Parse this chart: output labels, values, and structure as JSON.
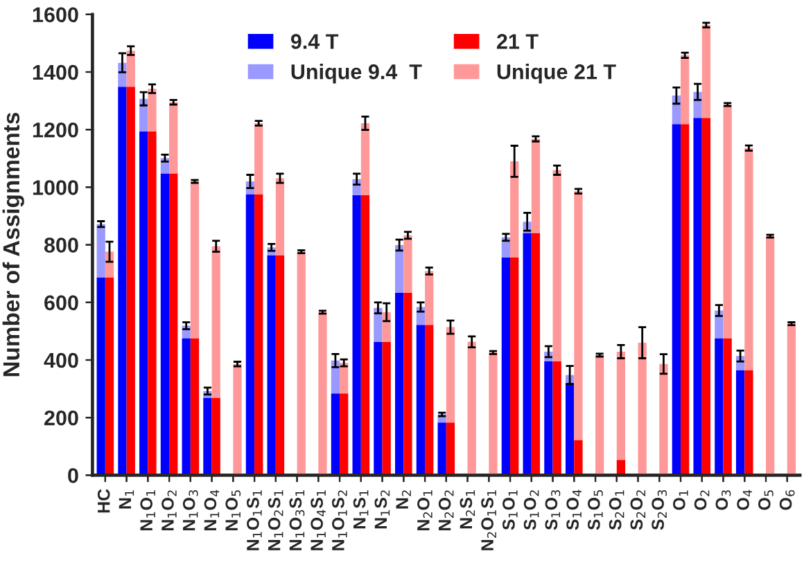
{
  "chart_data": [
    {
      "type": "bar",
      "stacked": true,
      "ylabel": "Number of Assignments",
      "categories": [
        "HC",
        "N$_{1}$",
        "N$_{1}$O$_{1}$",
        "N$_{1}$O$_{2}$",
        "N$_{1}$O$_{3}$",
        "N$_{1}$O$_{4}$",
        "N$_{1}$O$_{5}$",
        "N$_{1}$O$_{1}$S$_{1}$",
        "N$_{1}$O$_{2}$S$_{1}$",
        "N$_{1}$O$_{3}$S$_{1}$",
        "N$_{1}$O$_{4}$S$_{1}$",
        "N$_{1}$O$_{1}$S$_{2}$",
        "N$_{1}$S$_{1}$",
        "N$_{1}$S$_{2}$",
        "N$_{2}$",
        "N$_{2}$O$_{1}$",
        "N$_{2}$O$_{2}$",
        "N$_{2}$S$_{1}$",
        "N$_{2}$O$_{1}$S$_{1}$",
        "S$_{1}$O$_{1}$",
        "S$_{1}$O$_{2}$",
        "S$_{1}$O$_{3}$",
        "S$_{1}$O$_{4}$",
        "S$_{1}$O$_{5}$",
        "S$_{2}$O$_{1}$",
        "S$_{2}$O$_{2}$",
        "S$_{2}$O$_{3}$",
        "O$_{1}$",
        "O$_{2}$",
        "O$_{3}$",
        "O$_{4}$",
        "O$_{5}$",
        "O$_{6}$"
      ],
      "series": [
        {
          "name": "9.4 T",
          "color": "#0000ff",
          "values": [
            686,
            1349,
            1194,
            1048,
            476,
            269,
            null,
            976,
            763,
            null,
            null,
            284,
            973,
            463,
            634,
            522,
            183,
            null,
            null,
            756,
            841,
            395,
            320,
            null,
            null,
            null,
            null,
            1219,
            1241,
            476,
            364,
            null,
            null
          ]
        },
        {
          "name": "Unique 9.4  T",
          "color": "#9999ff",
          "values": [
            186,
            83,
            113,
            53,
            43,
            23,
            null,
            44,
            28,
            null,
            null,
            114,
            55,
            118,
            165,
            62,
            28,
            null,
            null,
            70,
            39,
            34,
            28,
            null,
            null,
            null,
            null,
            99,
            90,
            96,
            50,
            null,
            null
          ],
          "errors": [
            10,
            33,
            23,
            12,
            12,
            12,
            null,
            23,
            12,
            null,
            null,
            23,
            19,
            19,
            19,
            16,
            6,
            null,
            null,
            12,
            31,
            19,
            31,
            null,
            null,
            null,
            null,
            28,
            28,
            19,
            19,
            null,
            null
          ]
        }
      ],
      "ylim": [
        0,
        1600
      ],
      "yticks": [
        0,
        200,
        400,
        600,
        800,
        1000,
        1200,
        1400,
        1600
      ],
      "legend": "top",
      "grid": false
    },
    {
      "type": "bar",
      "stacked": true,
      "tick_labels": false,
      "categories": [
        null,
        null,
        null,
        null,
        null,
        null,
        null,
        null,
        null,
        null,
        null,
        null,
        null,
        null,
        null,
        null,
        null,
        null,
        null,
        null,
        null,
        null,
        null,
        null,
        null,
        null,
        null,
        null,
        null,
        null,
        null,
        null,
        null
      ],
      "series": [
        {
          "name": "21 T",
          "color": "#ff0000",
          "values": [
            686,
            1349,
            1194,
            1048,
            476,
            269,
            null,
            976,
            763,
            null,
            null,
            284,
            973,
            463,
            634,
            522,
            183,
            null,
            null,
            756,
            841,
            395,
            121,
            null,
            53,
            null,
            null,
            1219,
            1241,
            476,
            364,
            null,
            null
          ]
        },
        {
          "name": "Unique 21 T",
          "color": "#ff9999",
          "values": [
            90,
            125,
            148,
            247,
            544,
            526,
            386,
            246,
            268,
            776,
            566,
            106,
            249,
            103,
            199,
            187,
            331,
            463,
            426,
            334,
            327,
            664,
            865,
            417,
            376,
            460,
            386,
            239,
            322,
            811,
            772,
            830,
            526
          ],
          "errors": [
            35,
            15,
            15,
            8,
            5,
            19,
            8,
            8,
            16,
            5,
            5,
            12,
            23,
            31,
            12,
            12,
            23,
            19,
            5,
            54,
            9,
            16,
            8,
            5,
            23,
            54,
            34,
            9,
            8,
            5,
            9,
            5,
            5
          ]
        }
      ],
      "ylim": [
        0,
        1600
      ],
      "legend": "top",
      "grid": false
    }
  ]
}
